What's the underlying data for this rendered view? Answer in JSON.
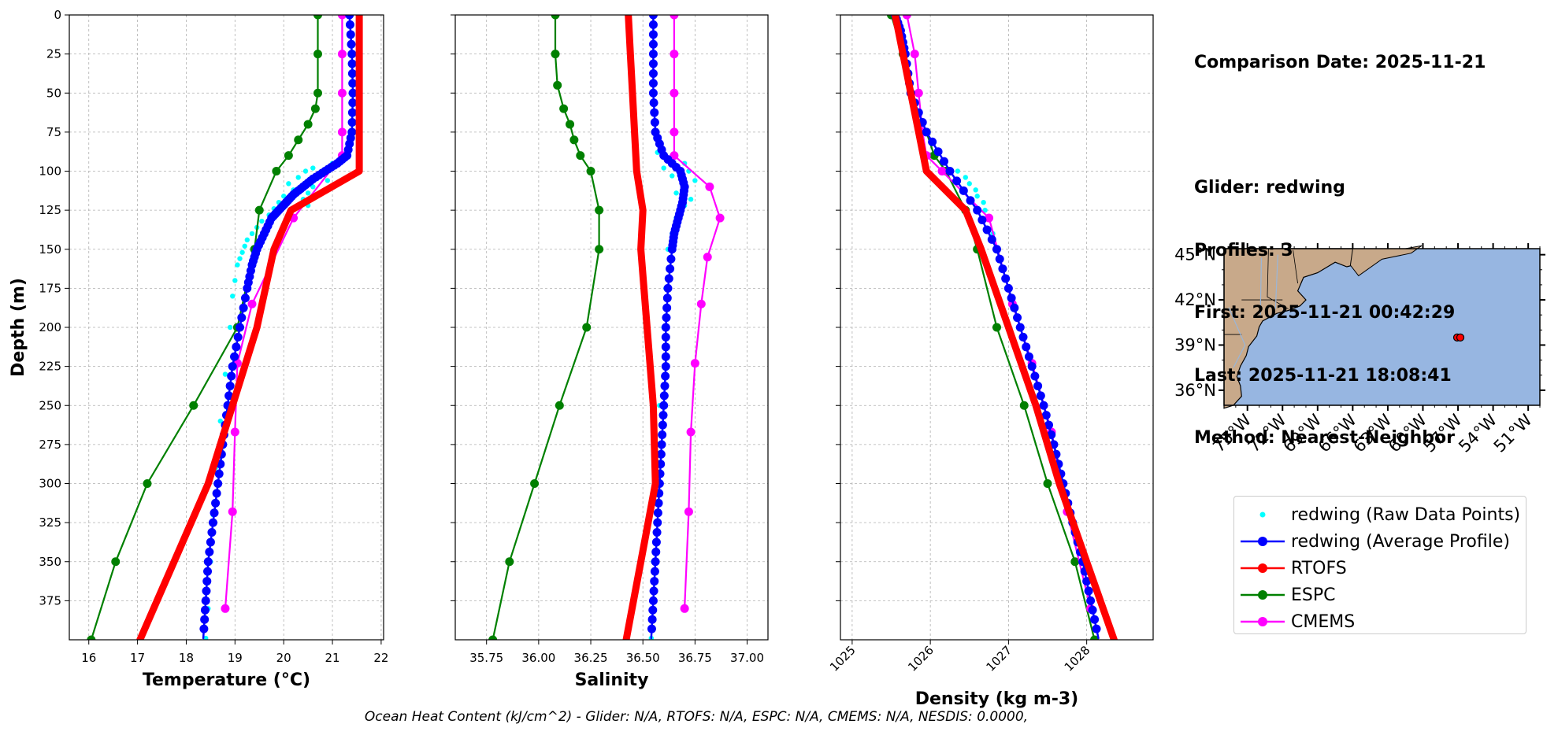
{
  "panels": {
    "temperature_xlabel": "Temperature (°C)",
    "salinity_xlabel": "Salinity",
    "density_xlabel": "Density (kg m-3)",
    "ylabel": "Depth (m)"
  },
  "info": {
    "comparison_date": "Comparison Date: 2025-11-21",
    "glider": "Glider: redwing",
    "profiles": "Profiles: 3",
    "first": "First: 2025-11-21 00:42:29",
    "last": "Last: 2025-11-21 18:08:41",
    "method": "Method: Nearest-Neighbor"
  },
  "legend": [
    {
      "label": "redwing (Raw Data Points)",
      "color": "#00ffff",
      "style": "points"
    },
    {
      "label": "redwing (Average Profile)",
      "color": "#0000ff",
      "style": "line-marker"
    },
    {
      "label": "RTOFS",
      "color": "#ff0000",
      "style": "line-marker"
    },
    {
      "label": "ESPC",
      "color": "#008000",
      "style": "line-marker"
    },
    {
      "label": "CMEMS",
      "color": "#ff00ff",
      "style": "line-marker"
    }
  ],
  "footer": "Ocean Heat Content (kJ/cm^2) - Glider: N/A,  RTOFS: N/A,  ESPC: N/A,  CMEMS: N/A,  NESDIS: 0.0000,",
  "map": {
    "lat_ticks": [
      "45°N",
      "42°N",
      "39°N",
      "36°N"
    ],
    "lon_ticks": [
      "75°W",
      "72°W",
      "69°W",
      "66°W",
      "63°W",
      "60°W",
      "57°W",
      "54°W",
      "51°W"
    ],
    "lat_range": [
      35,
      45.4
    ],
    "lon_range": [
      -77,
      -50
    ],
    "ocean_color": "#97b6e1",
    "land_color": "#c8a98a",
    "glider_position": {
      "lon": -56.8,
      "lat": 39.5
    }
  },
  "chart_data": [
    {
      "type": "line",
      "xlabel": "Temperature (°C)",
      "ylabel": "Depth (m)",
      "xlim": [
        15.6,
        22.05
      ],
      "ylim": [
        400,
        0
      ],
      "xticks": [
        16,
        17,
        18,
        19,
        20,
        21,
        22
      ],
      "yticks": [
        0,
        25,
        50,
        75,
        100,
        125,
        150,
        175,
        200,
        225,
        250,
        275,
        300,
        325,
        350,
        375
      ],
      "grid": true,
      "series": [
        {
          "name": "redwing (Raw Data Points)",
          "depth": [
            95,
            98,
            100,
            102,
            104,
            106,
            108,
            110,
            112,
            114,
            116,
            118,
            120,
            122,
            124,
            128,
            132,
            136,
            140,
            144,
            148,
            152,
            156,
            160,
            170,
            180,
            200,
            230,
            260,
            290,
            320,
            350,
            380,
            399
          ],
          "values": [
            21.0,
            20.6,
            20.45,
            20.7,
            20.3,
            20.9,
            20.1,
            20.6,
            20.2,
            20.5,
            20.0,
            20.4,
            19.9,
            20.5,
            19.8,
            19.7,
            19.55,
            19.45,
            19.35,
            19.25,
            19.2,
            19.15,
            19.1,
            19.05,
            19.0,
            18.95,
            18.9,
            18.8,
            18.7,
            18.6,
            18.55,
            18.5,
            18.45,
            18.4
          ]
        },
        {
          "name": "redwing (Average Profile)",
          "depth": [
            0,
            25,
            50,
            75,
            90,
            95,
            100,
            105,
            110,
            115,
            120,
            125,
            130,
            140,
            150,
            160,
            175,
            200,
            225,
            250,
            275,
            300,
            325,
            350,
            375,
            399
          ],
          "values": [
            21.35,
            21.4,
            21.42,
            21.4,
            21.3,
            21.1,
            20.85,
            20.6,
            20.4,
            20.2,
            20.05,
            19.9,
            19.75,
            19.6,
            19.45,
            19.35,
            19.25,
            19.1,
            18.95,
            18.85,
            18.75,
            18.65,
            18.55,
            18.45,
            18.4,
            18.35
          ]
        },
        {
          "name": "RTOFS",
          "depth": [
            0,
            25,
            50,
            75,
            100,
            125,
            150,
            200,
            250,
            300,
            350,
            400
          ],
          "values": [
            21.55,
            21.55,
            21.55,
            21.55,
            21.55,
            20.15,
            19.8,
            19.45,
            18.95,
            18.45,
            17.75,
            17.05
          ]
        },
        {
          "name": "ESPC",
          "depth": [
            0,
            25,
            50,
            60,
            70,
            80,
            90,
            100,
            125,
            150,
            200,
            250,
            300,
            350,
            400
          ],
          "values": [
            20.7,
            20.7,
            20.7,
            20.65,
            20.5,
            20.3,
            20.1,
            19.85,
            19.5,
            19.4,
            19.05,
            18.15,
            17.2,
            16.55,
            16.05
          ]
        },
        {
          "name": "CMEMS",
          "depth": [
            0,
            25,
            50,
            75,
            90,
            130,
            185,
            223,
            267,
            318,
            380
          ],
          "values": [
            21.2,
            21.2,
            21.2,
            21.2,
            21.2,
            20.2,
            19.35,
            19.05,
            19.0,
            18.95,
            18.8
          ]
        }
      ]
    },
    {
      "type": "line",
      "xlabel": "Salinity",
      "ylabel": "Depth (m)",
      "xlim": [
        35.6,
        37.1
      ],
      "ylim": [
        400,
        0
      ],
      "xticks": [
        35.75,
        36.0,
        36.25,
        36.5,
        36.75,
        37.0
      ],
      "grid": true,
      "series": [
        {
          "name": "redwing (Raw Data Points)",
          "depth": [
            88,
            92,
            95,
            98,
            100,
            103,
            106,
            110,
            114,
            118,
            122,
            125,
            130,
            140,
            150,
            175,
            200,
            250,
            300,
            350,
            399
          ],
          "values": [
            36.57,
            36.62,
            36.7,
            36.6,
            36.72,
            36.64,
            36.75,
            36.7,
            36.66,
            36.73,
            36.7,
            36.68,
            36.66,
            36.64,
            36.62,
            36.61,
            36.6,
            36.58,
            36.56,
            36.55,
            36.54
          ]
        },
        {
          "name": "redwing (Average Profile)",
          "depth": [
            0,
            25,
            50,
            75,
            90,
            100,
            110,
            120,
            130,
            140,
            150,
            175,
            200,
            225,
            250,
            275,
            300,
            325,
            350,
            375,
            399
          ],
          "values": [
            36.55,
            36.55,
            36.55,
            36.56,
            36.6,
            36.68,
            36.7,
            36.69,
            36.67,
            36.65,
            36.64,
            36.62,
            36.61,
            36.61,
            36.6,
            36.59,
            36.58,
            36.57,
            36.56,
            36.55,
            36.54
          ]
        },
        {
          "name": "RTOFS",
          "depth": [
            0,
            25,
            50,
            75,
            100,
            125,
            150,
            200,
            250,
            300,
            350,
            400
          ],
          "values": [
            36.43,
            36.44,
            36.45,
            36.46,
            36.47,
            36.5,
            36.49,
            36.52,
            36.55,
            36.56,
            36.49,
            36.42
          ]
        },
        {
          "name": "ESPC",
          "depth": [
            0,
            25,
            45,
            60,
            70,
            80,
            90,
            100,
            125,
            150,
            200,
            250,
            300,
            350,
            400
          ],
          "values": [
            36.08,
            36.08,
            36.09,
            36.12,
            36.15,
            36.17,
            36.2,
            36.25,
            36.29,
            36.29,
            36.23,
            36.1,
            35.98,
            35.86,
            35.78
          ]
        },
        {
          "name": "CMEMS",
          "depth": [
            0,
            25,
            50,
            75,
            90,
            110,
            130,
            155,
            185,
            223,
            267,
            318,
            380
          ],
          "values": [
            36.65,
            36.65,
            36.65,
            36.65,
            36.65,
            36.82,
            36.87,
            36.81,
            36.78,
            36.75,
            36.73,
            36.72,
            36.7
          ]
        }
      ]
    },
    {
      "type": "line",
      "xlabel": "Density (kg m-3)",
      "ylabel": "Depth (m)",
      "xlim": [
        1024.85,
        1028.85
      ],
      "ylim": [
        400,
        0
      ],
      "xticks": [
        1025,
        1026,
        1027,
        1028
      ],
      "grid": true,
      "series": [
        {
          "name": "redwing (Raw Data Points)",
          "depth": [
            100,
            104,
            108,
            112,
            116,
            120,
            125,
            130,
            140,
            150
          ],
          "values": [
            1026.35,
            1026.45,
            1026.5,
            1026.58,
            1026.6,
            1026.68,
            1026.7,
            1026.75,
            1026.8,
            1026.85
          ]
        },
        {
          "name": "redwing (Average Profile)",
          "depth": [
            0,
            10,
            25,
            50,
            75,
            100,
            125,
            150,
            175,
            200,
            225,
            250,
            275,
            300,
            325,
            350,
            375,
            399
          ],
          "values": [
            1025.55,
            1025.62,
            1025.68,
            1025.75,
            1025.95,
            1026.25,
            1026.6,
            1026.85,
            1027.0,
            1027.15,
            1027.3,
            1027.45,
            1027.58,
            1027.7,
            1027.82,
            1027.95,
            1028.05,
            1028.15
          ]
        },
        {
          "name": "RTOFS",
          "depth": [
            0,
            25,
            50,
            75,
            100,
            125,
            150,
            200,
            250,
            300,
            350,
            400
          ],
          "values": [
            1025.55,
            1025.65,
            1025.75,
            1025.85,
            1025.95,
            1026.45,
            1026.65,
            1027.0,
            1027.35,
            1027.65,
            1028.0,
            1028.35
          ]
        },
        {
          "name": "ESPC",
          "depth": [
            0,
            25,
            50,
            75,
            90,
            100,
            125,
            150,
            200,
            250,
            300,
            350,
            400
          ],
          "values": [
            1025.5,
            1025.65,
            1025.75,
            1025.95,
            1026.05,
            1026.2,
            1026.45,
            1026.6,
            1026.85,
            1027.2,
            1027.5,
            1027.85,
            1028.1
          ]
        },
        {
          "name": "CMEMS",
          "depth": [
            0,
            25,
            50,
            75,
            90,
            100,
            130,
            185,
            223,
            267,
            318,
            380
          ],
          "values": [
            1025.7,
            1025.8,
            1025.85,
            1025.9,
            1025.95,
            1026.15,
            1026.75,
            1027.05,
            1027.3,
            1027.55,
            1027.75,
            1028.05
          ]
        }
      ]
    }
  ]
}
